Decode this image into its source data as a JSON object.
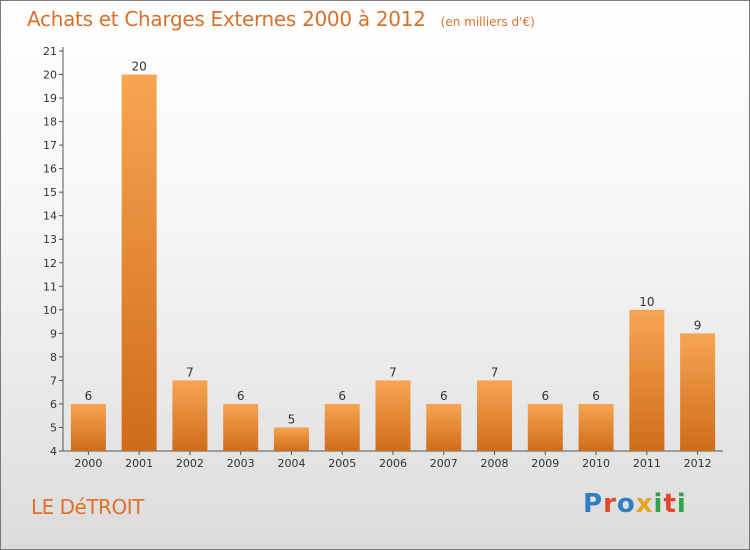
{
  "header": {
    "title": "Achats et Charges Externes 2000 à 2012",
    "unit": "(en milliers d'€)"
  },
  "footer": {
    "commune": "LE DéTROIT",
    "brand": "Proxiti"
  },
  "colors": {
    "title": "#d9702a",
    "bar_light": "#f5a04f",
    "bar_dark": "#d4731e",
    "axis": "#555555"
  },
  "chart_data": {
    "type": "bar",
    "title": "Achats et Charges Externes 2000 à 2012",
    "subtitle": "(en milliers d'€)",
    "xlabel": "",
    "ylabel": "",
    "categories": [
      "2000",
      "2001",
      "2002",
      "2003",
      "2004",
      "2005",
      "2006",
      "2007",
      "2008",
      "2009",
      "2010",
      "2011",
      "2012"
    ],
    "values": [
      6,
      20,
      7,
      6,
      5,
      6,
      7,
      6,
      7,
      6,
      6,
      10,
      9
    ],
    "ylim": [
      4,
      21
    ],
    "yticks": [
      4,
      5,
      6,
      7,
      8,
      9,
      10,
      11,
      12,
      13,
      14,
      15,
      16,
      17,
      18,
      19,
      20,
      21
    ],
    "grid": false,
    "legend": "none"
  }
}
